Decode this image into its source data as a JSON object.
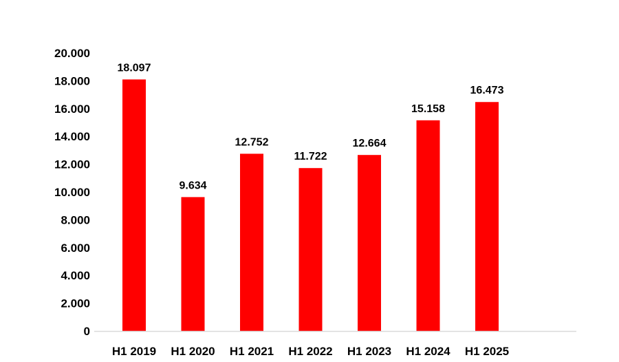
{
  "chart_data": {
    "type": "bar",
    "title": "",
    "xlabel": "",
    "ylabel": "",
    "categories": [
      "H1 2019",
      "H1 2020",
      "H1 2021",
      "H1 2022",
      "H1 2023",
      "H1 2024",
      "H1 2025"
    ],
    "values": [
      18097,
      9634,
      12752,
      11722,
      12664,
      15158,
      16473
    ],
    "value_labels": [
      "18.097",
      "9.634",
      "12.752",
      "11.722",
      "12.664",
      "15.158",
      "16.473"
    ],
    "ylim": [
      0,
      20000
    ],
    "yticks": [
      0,
      2000,
      4000,
      6000,
      8000,
      10000,
      12000,
      14000,
      16000,
      18000,
      20000
    ],
    "ytick_labels": [
      "0",
      "2.000",
      "4.000",
      "6.000",
      "8.000",
      "10.000",
      "12.000",
      "14.000",
      "16.000",
      "18.000",
      "20.000"
    ],
    "grid": false,
    "legend": "none",
    "colors": {
      "bar": "#ff0000",
      "axis": "#d9d9d9",
      "text": "#000000"
    }
  }
}
